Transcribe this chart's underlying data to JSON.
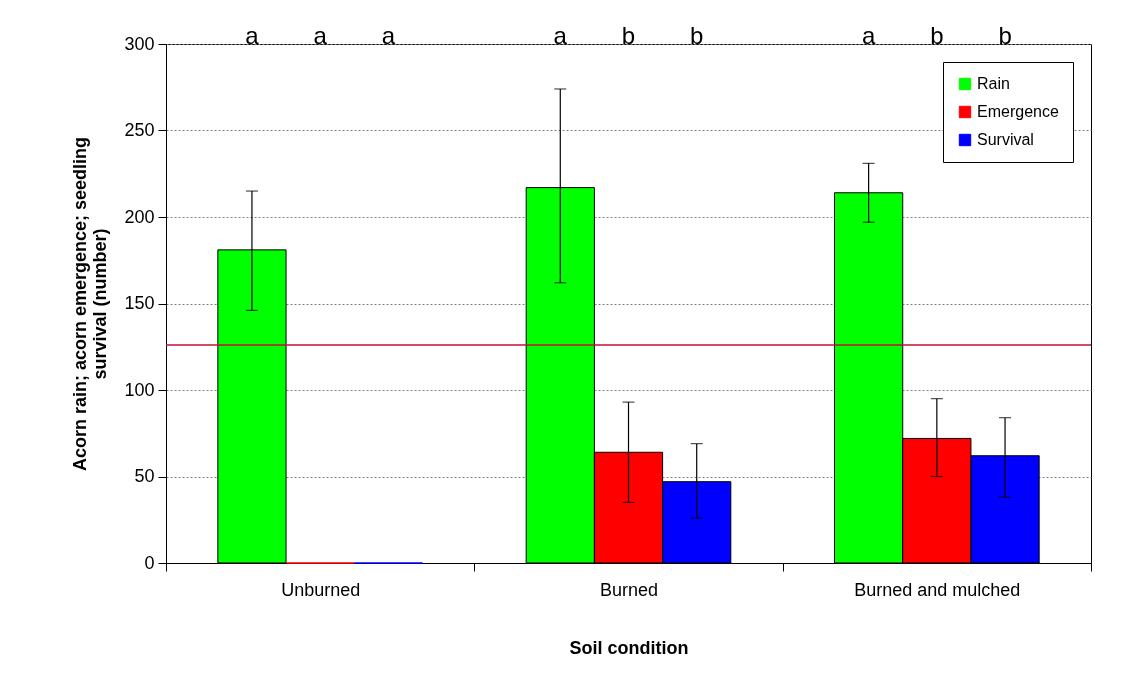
{
  "chart_data": {
    "type": "bar",
    "xlabel": "Soil condition",
    "ylabel": "Acorn rain; acorn emergence; seedling survival (number)",
    "categories": [
      "Unburned",
      "Burned",
      "Burned and mulched"
    ],
    "series": [
      {
        "name": "Rain",
        "color": "#00ff00",
        "values": [
          181,
          217,
          214
        ],
        "errors": [
          [
            146,
            215
          ],
          [
            162,
            274
          ],
          [
            197,
            231
          ]
        ]
      },
      {
        "name": "Emergence",
        "color": "#ff0000",
        "values": [
          0,
          64,
          72
        ],
        "errors": [
          null,
          [
            35,
            93
          ],
          [
            50,
            95
          ]
        ]
      },
      {
        "name": "Survival",
        "color": "#0000ff",
        "values": [
          0,
          47,
          62
        ],
        "errors": [
          null,
          [
            26,
            69
          ],
          [
            38,
            84
          ]
        ]
      }
    ],
    "ylim": [
      0,
      300
    ],
    "yticks": [
      0,
      50,
      100,
      150,
      200,
      250,
      300
    ],
    "grid": "y",
    "legend": "top right",
    "annotations": [
      "a",
      "a",
      "a",
      "a",
      "b",
      "b",
      "a",
      "b",
      "b"
    ],
    "ref_lines": [
      {
        "axis": "y",
        "value": 126,
        "color": "#c0103c"
      }
    ]
  }
}
